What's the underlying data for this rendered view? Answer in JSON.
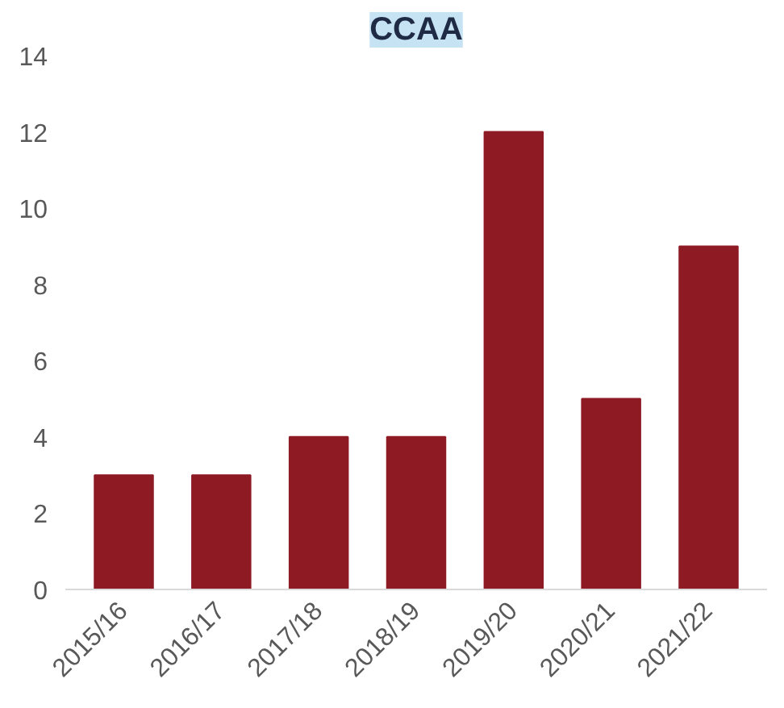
{
  "chart_data": {
    "type": "bar",
    "title": "CCAA",
    "categories": [
      "2015/16",
      "2016/17",
      "2017/18",
      "2018/19",
      "2019/20",
      "2020/21",
      "2021/22"
    ],
    "values": [
      3,
      3,
      4,
      4,
      12,
      5,
      9
    ],
    "color": "#8e1b24",
    "ylim": [
      0,
      14
    ],
    "yticks": [
      0,
      2,
      4,
      6,
      8,
      10,
      12,
      14
    ],
    "grid": false
  }
}
